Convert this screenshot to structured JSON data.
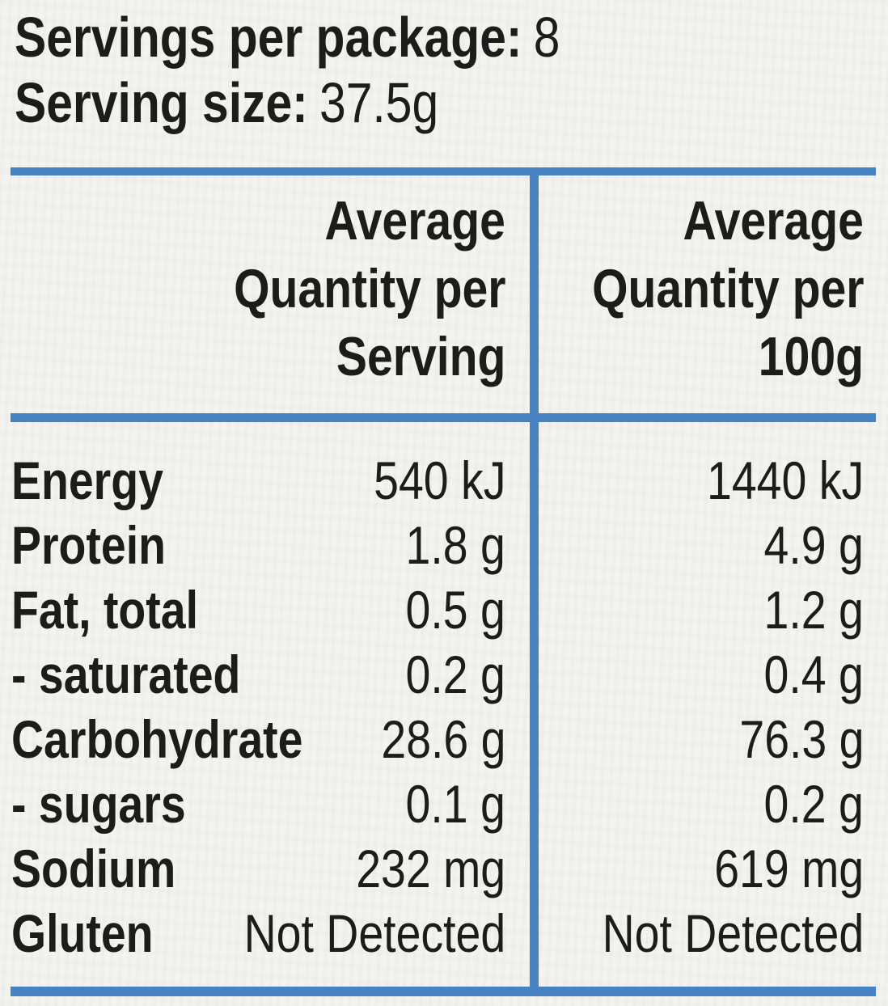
{
  "header_info": {
    "servings_label": "Servings per package:",
    "servings_value": "8",
    "serving_size_label": "Serving size:",
    "serving_size_value": "37.5g"
  },
  "table": {
    "columns": [
      {
        "lines": [
          "Average",
          "Quantity per",
          "Serving"
        ]
      },
      {
        "lines": [
          "Average",
          "Quantity per",
          "100g"
        ]
      }
    ],
    "rows": [
      {
        "label": "Energy",
        "per_serving": "540 kJ",
        "per_100g": "1440 kJ"
      },
      {
        "label": "Protein",
        "per_serving": "1.8 g",
        "per_100g": "4.9 g"
      },
      {
        "label": "Fat, total",
        "per_serving": "0.5 g",
        "per_100g": "1.2 g"
      },
      {
        "label": "- saturated",
        "per_serving": "0.2 g",
        "per_100g": "0.4 g"
      },
      {
        "label": "Carbohydrate",
        "per_serving": "28.6 g",
        "per_100g": "76.3 g"
      },
      {
        "label": "- sugars",
        "per_serving": "0.1 g",
        "per_100g": "0.2 g"
      },
      {
        "label": "Sodium",
        "per_serving": "232 mg",
        "per_100g": "619 mg"
      },
      {
        "label": "Gluten",
        "per_serving": "Not Detected",
        "per_100g": "Not Detected"
      }
    ]
  },
  "colors": {
    "rule_blue": "#4783c3",
    "text": "#1c1c1a",
    "background": "#f3f3f0"
  }
}
